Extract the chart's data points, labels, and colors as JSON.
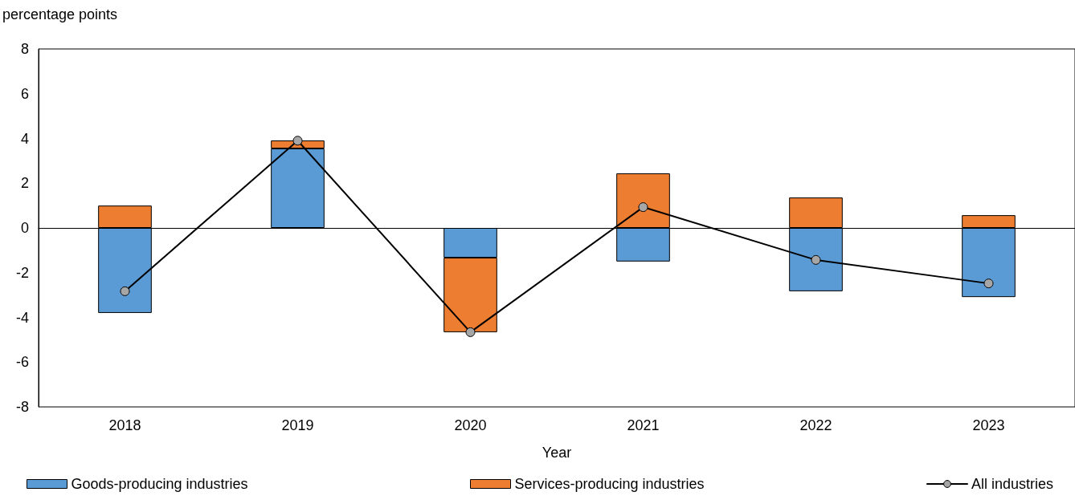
{
  "chart_data": {
    "type": "bar",
    "stacked": true,
    "ylabel": "percentage points",
    "xlabel": "Year",
    "categories": [
      "2018",
      "2019",
      "2020",
      "2021",
      "2022",
      "2023"
    ],
    "series": [
      {
        "name": "Goods-producing industries",
        "color": "#5b9bd5",
        "values": [
          -3.8,
          3.55,
          -1.33,
          -1.5,
          -2.83,
          -3.09
        ]
      },
      {
        "name": "Services-producing industries",
        "color": "#ed7d31",
        "values": [
          1.0,
          0.36,
          -3.33,
          2.44,
          1.36,
          0.57
        ]
      },
      {
        "name": "All industries",
        "type": "line",
        "color": "#000000",
        "values": [
          -2.83,
          3.9,
          -4.66,
          0.93,
          -1.43,
          -2.48
        ]
      }
    ],
    "ylim": [
      -8,
      8
    ],
    "yticks": [
      -8,
      -6,
      -4,
      -2,
      0,
      2,
      4,
      6,
      8
    ],
    "legend": "bottom",
    "marker": "circle",
    "line_style": "solid"
  }
}
